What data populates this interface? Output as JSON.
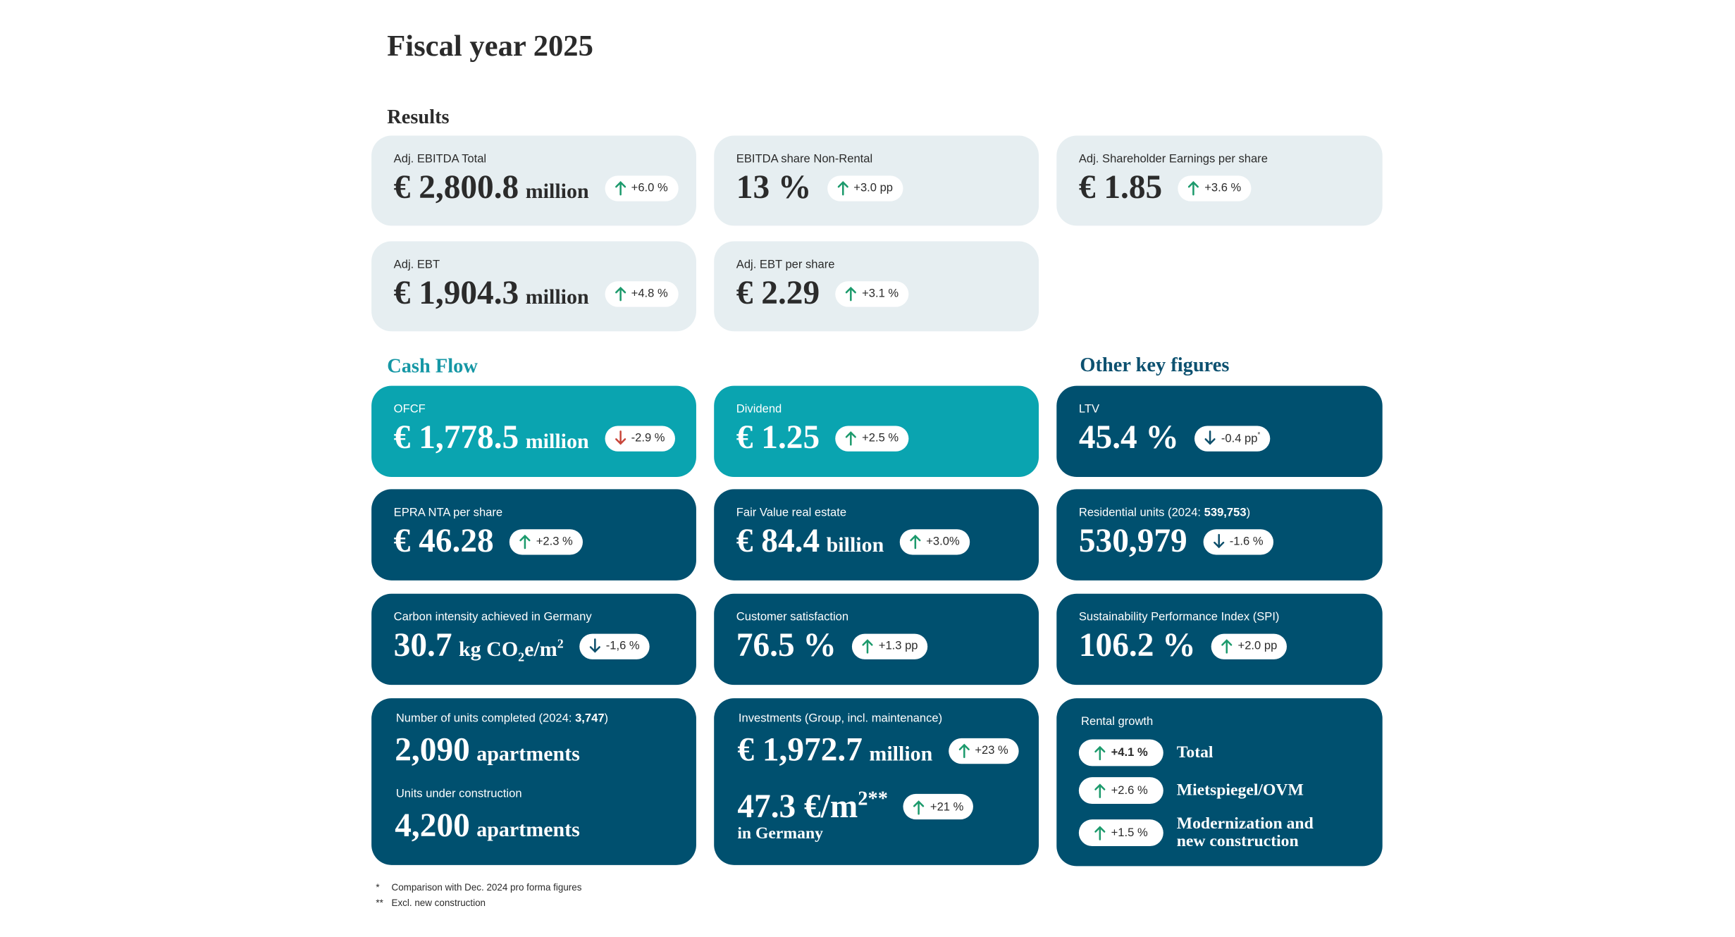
{
  "title": "Fiscal year 2025",
  "sections": [
    {
      "heading": "Results",
      "color": "#2b2b2b",
      "cards": [
        {
          "color": "#e6eef1",
          "label": "Adj. EBITDA Total",
          "value": "€ 2,800.8",
          "unit": "million",
          "change": "+6.0 %",
          "dir": "up"
        },
        {
          "color": "#e6eef1",
          "label": "EBITDA share Non-Rental",
          "value": "13 %",
          "change": "+3.0 pp",
          "dir": "up"
        },
        {
          "color": "#e6eef1",
          "label": "Adj. Shareholder Earnings per share",
          "value": "€ 1.85",
          "change": "+3.6 %",
          "dir": "up"
        },
        {
          "color": "#e6eef1",
          "label": "Adj. EBT",
          "value": "€ 1,904.3",
          "unit": "million",
          "change": "+4.8 %",
          "dir": "up"
        },
        {
          "color": "#e6eef1",
          "label": "Adj. EBT per share",
          "value": "€ 2.29",
          "change": "+3.1 %",
          "dir": "up"
        }
      ]
    },
    {
      "heading": "Cash Flow",
      "color": "#1597a5",
      "cards": [
        {
          "color": "#0aa4b0",
          "label": "OFCF",
          "value": "€ 1,778.5",
          "unit": "million",
          "change": "-2.9 %",
          "dir": "down"
        },
        {
          "color": "#0aa4b0",
          "label": "Dividend",
          "value": "€ 1.25",
          "change": "+2.5 %",
          "dir": "up"
        },
        {
          "color": "#00506f",
          "label": "EPRA NTA per share",
          "value": "€ 46.28",
          "change": "+2.3 %",
          "dir": "up"
        },
        {
          "color": "#00506f",
          "label": "Fair Value real estate",
          "value": "€ 84.4",
          "unit": "billion",
          "change": "+3.0%",
          "dir": "up"
        },
        {
          "color": "#00506f",
          "label": "Carbon intensity achieved in Germany",
          "value": "30.7",
          "unit": [
            {
              "text": "kg CO"
            },
            {
              "sub": "2"
            },
            {
              "text": "e/m"
            },
            {
              "sup": "2"
            }
          ],
          "change": "-1,6 %",
          "dir": "down"
        },
        {
          "color": "#00506f",
          "label": "Customer satisfaction",
          "value": "76.5 %",
          "change": "+1.3 pp",
          "dir": "up"
        },
        {
          "color": "#00506f",
          "items": [
            {
              "label": [
                {
                  "text": "Number of units completed (2024: "
                },
                {
                  "bold": "3,747"
                },
                {
                  "text": ")"
                }
              ],
              "value": "2,090",
              "unit": "apartments"
            },
            {
              "label": "Units under construction",
              "value": "4,200",
              "unit": "apartments"
            }
          ]
        },
        {
          "color": "#00506f",
          "items": [
            {
              "label": "Investments (Group, incl. maintenance)",
              "value": "€ 1,972.7",
              "unit": "million",
              "change": "+23 %",
              "dir": "up"
            },
            {
              "value": [
                {
                  "text": "47.3 €/m"
                },
                {
                  "sup": "2**"
                }
              ],
              "change": "+21 %",
              "dir": "up",
              "note": "in Germany"
            }
          ]
        }
      ]
    },
    {
      "heading": "Other key figures",
      "color": "#0d5170",
      "cards": [
        {
          "color": "#00506f",
          "label": "LTV",
          "value": "45.4 %",
          "change": [
            {
              "text": "-0.4 pp"
            },
            {
              "sup": "*"
            }
          ],
          "dir": "down"
        },
        {
          "color": "#00506f",
          "label": [
            {
              "text": "Residential units (2024: "
            },
            {
              "bold": "539,753"
            },
            {
              "text": ")"
            }
          ],
          "value": "530,979",
          "change": "-1.6 %",
          "dir": "down"
        },
        {
          "color": "#00506f",
          "label": "Sustainability Performance Index (SPI)",
          "value": "106.2 %",
          "change": "+2.0 pp",
          "dir": "up"
        },
        {
          "color": "#00506f",
          "label": "Rental growth",
          "rows": [
            {
              "change": "+4.1 %",
              "dir": "up",
              "text": "Total"
            },
            {
              "change": "+2.6 %",
              "dir": "up",
              "text": "Mietspiegel/OVM"
            },
            {
              "change": "+1.5 %",
              "dir": "up",
              "text": "Modernization and new construction"
            }
          ]
        }
      ]
    }
  ],
  "footnotes": [
    {
      "mark": "*",
      "text": "Comparison with Dec. 2024 pro forma figures"
    },
    {
      "mark": "**",
      "text": "Excl. new construction"
    }
  ]
}
